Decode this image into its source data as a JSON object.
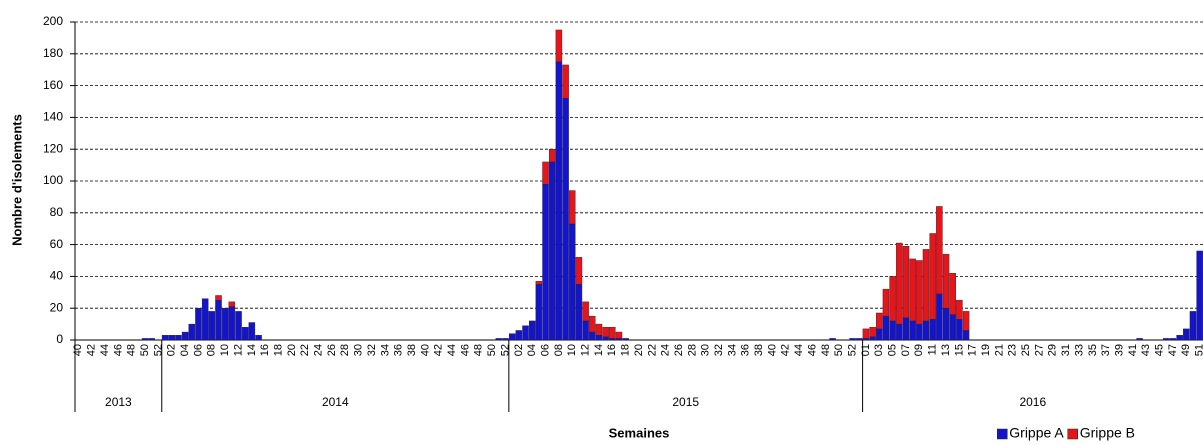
{
  "chart_data": {
    "type": "stacked-bar",
    "y_label": "Nombre d'isolements",
    "x_label": "Semaines",
    "ylim": [
      0,
      200
    ],
    "yticks": [
      0,
      20,
      40,
      60,
      80,
      100,
      120,
      140,
      160,
      180,
      200
    ],
    "grid": true,
    "legend": "bottom-right",
    "x_groups": [
      "2013",
      "2014",
      "2015",
      "2016"
    ],
    "categories": [
      "40",
      null,
      "42",
      null,
      "44",
      null,
      "46",
      null,
      "48",
      null,
      "50",
      null,
      "52",
      null,
      "02",
      null,
      "04",
      null,
      "06",
      null,
      "08",
      null,
      "10",
      null,
      "12",
      null,
      "14",
      null,
      "16",
      null,
      "18",
      null,
      "20",
      null,
      "22",
      null,
      "24",
      null,
      "26",
      null,
      "28",
      null,
      "30",
      null,
      "32",
      null,
      "34",
      null,
      "36",
      null,
      "38",
      null,
      "40",
      null,
      "42",
      null,
      "44",
      null,
      "46",
      null,
      "48",
      null,
      "50",
      null,
      "52",
      null,
      "02",
      null,
      "04",
      null,
      "06",
      null,
      "08",
      null,
      "10",
      null,
      "12",
      null,
      "14",
      null,
      "16",
      null,
      "18",
      null,
      "20",
      null,
      "22",
      null,
      "24",
      null,
      "26",
      null,
      "28",
      null,
      "30",
      null,
      "32",
      null,
      "34",
      null,
      "36",
      null,
      "38",
      null,
      "40",
      null,
      "42",
      null,
      "44",
      null,
      "46",
      null,
      "48",
      null,
      "50",
      null,
      "52",
      null,
      "01",
      null,
      "03",
      null,
      "05",
      null,
      "07",
      null,
      "09",
      null,
      "11",
      null,
      "13",
      null,
      "15",
      null,
      "17",
      null,
      "19",
      null,
      "21",
      null,
      "23",
      null,
      "25",
      null,
      "27",
      null,
      "29",
      null,
      "31",
      null,
      "33",
      null,
      "35",
      null,
      "37",
      null,
      "39",
      null,
      "41",
      null,
      "43",
      null,
      "45",
      null,
      "47",
      null,
      "49",
      null,
      "51"
    ],
    "series": [
      {
        "name": "Grippe A",
        "color": "#1414cc",
        "values": [
          0,
          0,
          0,
          0,
          0,
          0,
          0,
          0,
          0,
          0,
          1,
          1,
          0,
          3,
          3,
          3,
          5,
          10,
          20,
          26,
          18,
          25,
          20,
          21,
          18,
          8,
          11,
          3,
          0,
          0,
          0,
          0,
          0,
          0,
          0,
          0,
          0,
          0,
          0,
          0,
          0,
          0,
          0,
          0,
          0,
          0,
          0,
          0,
          0,
          0,
          0,
          0,
          0,
          0,
          0,
          0,
          0,
          0,
          0,
          0,
          0,
          0,
          0,
          1,
          1,
          4,
          6,
          9,
          12,
          35,
          98,
          112,
          175,
          152,
          73,
          35,
          12,
          5,
          3,
          2,
          1,
          1,
          1,
          0,
          0,
          0,
          0,
          0,
          0,
          0,
          0,
          0,
          0,
          0,
          0,
          0,
          0,
          0,
          0,
          0,
          0,
          0,
          0,
          0,
          0,
          0,
          0,
          0,
          0,
          0,
          0,
          0,
          0,
          1,
          0,
          0,
          1,
          1,
          1,
          2,
          7,
          15,
          12,
          10,
          14,
          12,
          10,
          12,
          13,
          29,
          20,
          16,
          13,
          6,
          0,
          0,
          0,
          0,
          0,
          0,
          0,
          0,
          0,
          0,
          0,
          0,
          0,
          0,
          0,
          0,
          0,
          0,
          0,
          0,
          0,
          0,
          0,
          0,
          0,
          1,
          0,
          0,
          0,
          1,
          1,
          3,
          7,
          18,
          56
        ]
      },
      {
        "name": "Grippe B",
        "color": "#e8141b",
        "values": [
          0,
          0,
          0,
          0,
          0,
          0,
          0,
          0,
          0,
          0,
          0,
          0,
          0,
          0,
          0,
          0,
          0,
          0,
          0,
          0,
          0,
          3,
          0,
          3,
          0,
          0,
          0,
          0,
          0,
          0,
          0,
          0,
          0,
          0,
          0,
          0,
          0,
          0,
          0,
          0,
          0,
          0,
          0,
          0,
          0,
          0,
          0,
          0,
          0,
          0,
          0,
          0,
          0,
          0,
          0,
          0,
          0,
          0,
          0,
          0,
          0,
          0,
          0,
          0,
          0,
          0,
          0,
          0,
          0,
          2,
          14,
          8,
          20,
          21,
          21,
          17,
          12,
          10,
          7,
          6,
          7,
          4,
          0,
          0,
          0,
          0,
          0,
          0,
          0,
          0,
          0,
          0,
          0,
          0,
          0,
          0,
          0,
          0,
          0,
          0,
          0,
          0,
          0,
          0,
          0,
          0,
          0,
          0,
          0,
          0,
          0,
          0,
          0,
          0,
          0,
          0,
          0,
          0,
          6,
          6,
          10,
          17,
          28,
          51,
          45,
          39,
          40,
          45,
          54,
          55,
          34,
          26,
          12,
          12,
          0,
          0,
          0,
          0,
          0,
          0,
          0,
          0,
          0,
          0,
          0,
          0,
          0,
          0,
          0,
          0,
          0,
          0,
          0,
          0,
          0,
          0,
          0,
          0,
          0,
          0,
          0,
          0,
          0,
          0,
          0,
          0,
          0,
          0,
          0
        ]
      }
    ]
  }
}
